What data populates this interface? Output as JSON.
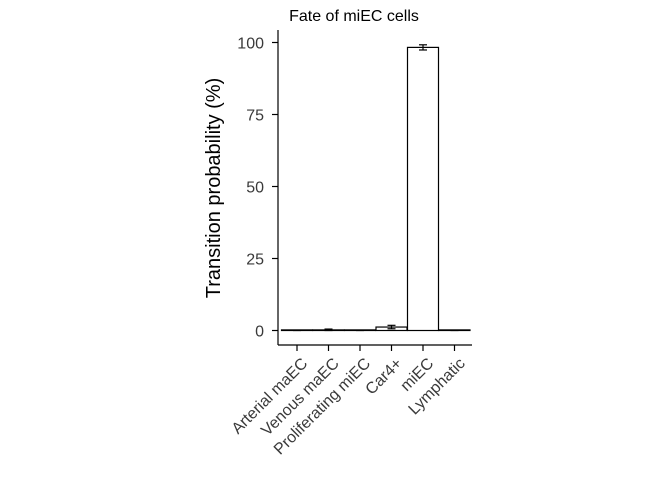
{
  "chart_data": {
    "type": "bar",
    "title": "Fate of miEC cells",
    "ylabel": "Transition probability (%)",
    "xlabel": "",
    "categories": [
      "Arterial maEC",
      "Venous maEC",
      "Proliferating miEC",
      "Car4+",
      "miEC",
      "Lymphatic"
    ],
    "values": [
      0,
      0.2,
      0,
      1.2,
      98.3,
      0
    ],
    "errors": [
      0.1,
      0.3,
      0.1,
      0.6,
      0.9,
      0.1
    ],
    "ylim": [
      -4,
      104
    ],
    "yticks": [
      0,
      25,
      50,
      75,
      100
    ],
    "grid": false,
    "legend": "none",
    "colors": {
      "bar_fill": "#ffffff",
      "bar_stroke": "#000000",
      "tick_text": "#3a3a3a"
    }
  }
}
